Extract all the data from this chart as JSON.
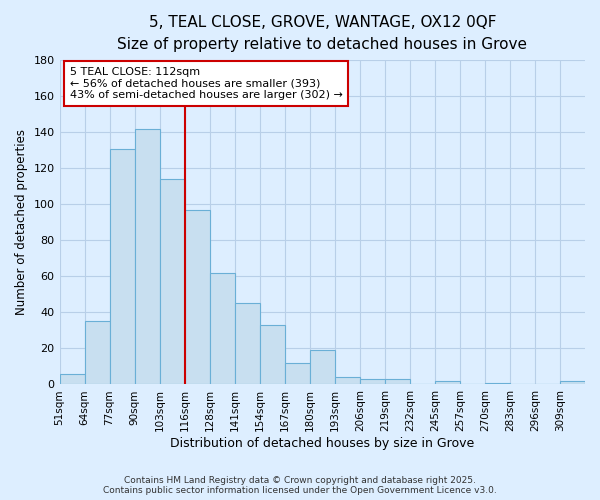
{
  "title": "5, TEAL CLOSE, GROVE, WANTAGE, OX12 0QF",
  "subtitle": "Size of property relative to detached houses in Grove",
  "xlabel": "Distribution of detached houses by size in Grove",
  "ylabel": "Number of detached properties",
  "categories": [
    "51sqm",
    "64sqm",
    "77sqm",
    "90sqm",
    "103sqm",
    "116sqm",
    "128sqm",
    "141sqm",
    "154sqm",
    "167sqm",
    "180sqm",
    "193sqm",
    "206sqm",
    "219sqm",
    "232sqm",
    "245sqm",
    "257sqm",
    "270sqm",
    "283sqm",
    "296sqm",
    "309sqm"
  ],
  "values": [
    6,
    35,
    131,
    142,
    114,
    97,
    62,
    45,
    33,
    12,
    19,
    4,
    3,
    3,
    0,
    2,
    0,
    1,
    0,
    0,
    2
  ],
  "bar_color": "#c8dff0",
  "bar_edge_color": "#6aafd6",
  "vline_x_index": 5,
  "vline_color": "#cc0000",
  "annotation_title": "5 TEAL CLOSE: 112sqm",
  "annotation_line1": "← 56% of detached houses are smaller (393)",
  "annotation_line2": "43% of semi-detached houses are larger (302) →",
  "annotation_box_color": "#ffffff",
  "annotation_box_edge": "#cc0000",
  "ylim": [
    0,
    180
  ],
  "yticks": [
    0,
    20,
    40,
    60,
    80,
    100,
    120,
    140,
    160,
    180
  ],
  "footer1": "Contains HM Land Registry data © Crown copyright and database right 2025.",
  "footer2": "Contains public sector information licensed under the Open Government Licence v3.0.",
  "bg_color": "#ddeeff",
  "grid_color": "#b8cfe8",
  "title_fontsize": 11,
  "subtitle_fontsize": 9
}
